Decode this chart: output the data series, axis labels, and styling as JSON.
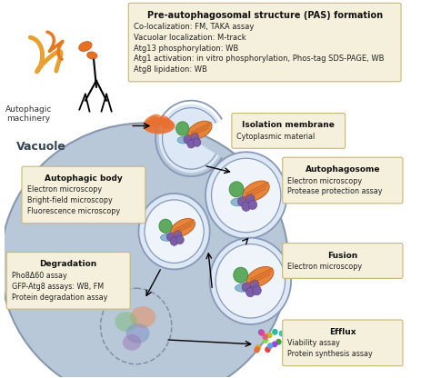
{
  "background_color": "#ffffff",
  "vacuole_color": "#b8c8d8",
  "vacuole_outline": "#8898b0",
  "box_bg": "#f5f0dc",
  "box_border": "#c8b870",
  "text_color": "#222222",
  "vacuole_label": "Vacuole",
  "autophagic_machinery_label": "Autophagic\nmachinery",
  "pas_title": "Pre-autophagosomal structure (PAS) formation",
  "pas_lines": [
    "Co-localization: FM, TAKA assay",
    "Vacuolar localization: M-track",
    "Atg13 phosphorylation: WB",
    "Atg1 activation: in vitro phosphorylation, Phos-tag SDS-PAGE, WB",
    "Atg8 lipidation: WB"
  ],
  "isolation_title": "Isolation membrane",
  "isolation_lines": [
    "Cytoplasmic material"
  ],
  "autophagosome_title": "Autophagosome",
  "autophagosome_lines": [
    "Electron microscopy",
    "Protease protection assay"
  ],
  "autophagic_body_title": "Autophagic body",
  "autophagic_body_lines": [
    "Electron microscopy",
    "Bright-field microscopy",
    "Fluorescence microscopy"
  ],
  "fusion_title": "Fusion",
  "fusion_lines": [
    "Electron microscopy"
  ],
  "degradation_title": "Degradation",
  "degradation_lines": [
    "Pho8Δ60 assay",
    "GFP-Atg8 assays: WB, FM",
    "Protein degradation assay"
  ],
  "efflux_title": "Efflux",
  "efflux_lines": [
    "Viability assay",
    "Protein synthesis assay"
  ],
  "mito_color": "#e8833a",
  "mito_edge": "#c06020",
  "green_color": "#5daa60",
  "green_edge": "#3a8a3a",
  "blue_color": "#8fb8d0",
  "blue_edge": "#5090b0",
  "purple_color": "#7b5ea7",
  "purple_edge": "#5a3e87",
  "cell_outer": "#c8d4e8",
  "cell_inner": "#dce8f5",
  "cell_edge": "#8898b8"
}
